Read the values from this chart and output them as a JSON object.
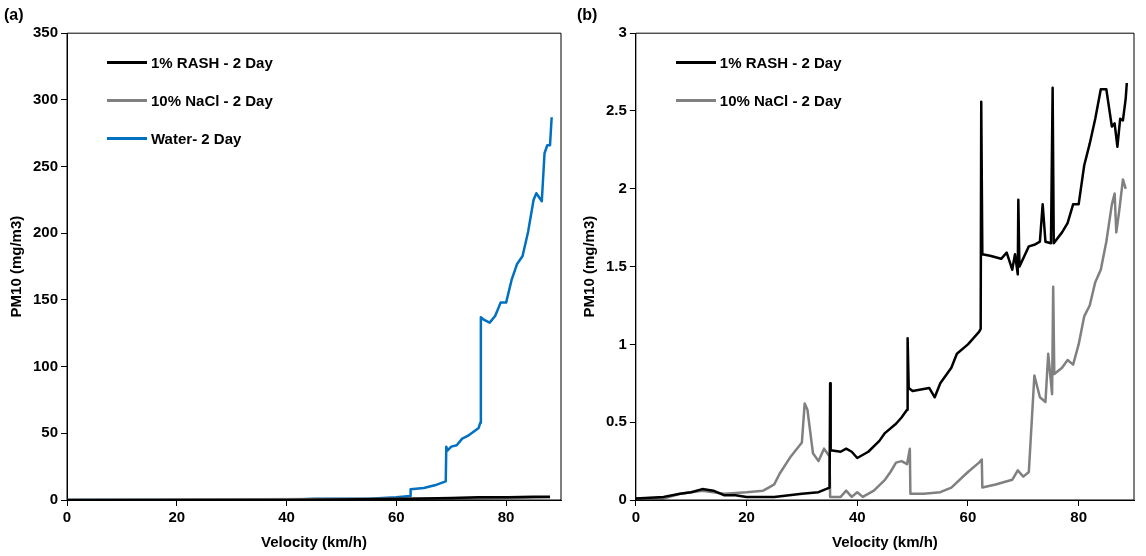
{
  "chart_data": [
    {
      "type": "line",
      "title": "(a)",
      "xlabel": "Velocity (km/h)",
      "ylabel": "PM10 (mg/m3)",
      "xlim": [
        0,
        90
      ],
      "xticks": [
        0,
        20,
        40,
        60,
        80
      ],
      "ylim": [
        0,
        350
      ],
      "yticks": [
        0,
        50,
        100,
        150,
        200,
        250,
        300,
        350
      ],
      "grid": false,
      "legend": "top left",
      "marker": "none",
      "series": [
        {
          "name": "1% RASH - 2 Day",
          "color": "#000000",
          "x": [
            0,
            40,
            62.5,
            70,
            75,
            80,
            85,
            88
          ],
          "values": [
            0,
            0,
            1,
            1.5,
            2,
            2,
            2.5,
            2.5
          ]
        },
        {
          "name": "10% NaCl - 2 Day",
          "color": "#808080",
          "x": [
            0,
            60,
            70,
            80,
            88
          ],
          "values": [
            0,
            1,
            1,
            1.5,
            2
          ]
        },
        {
          "name": "Water- 2 Day",
          "color": "#0070c0",
          "x": [
            0,
            40,
            45,
            50,
            55,
            60,
            62.5,
            62.6,
            65,
            67,
            69,
            69.1,
            69.3,
            70,
            71,
            72,
            73,
            74,
            75,
            75.3,
            75.4,
            76,
            77,
            78,
            79,
            80,
            81,
            82,
            83,
            84,
            85,
            85.5,
            86,
            86.5,
            87,
            87.5,
            88,
            88.3
          ],
          "values": [
            0,
            0,
            1,
            1,
            1,
            2,
            3,
            8,
            9,
            11,
            14,
            40,
            37,
            40,
            41,
            46,
            48,
            51,
            54,
            58,
            137,
            135,
            133,
            138,
            148,
            148,
            165,
            177,
            183,
            201,
            225,
            230,
            227,
            224,
            260,
            266,
            266,
            287
          ]
        }
      ]
    },
    {
      "type": "line",
      "title": "(b)",
      "xlabel": "Velocity (km/h)",
      "ylabel": "PM10 (mg/m3)",
      "xlim": [
        0,
        90
      ],
      "xticks": [
        0,
        20,
        40,
        60,
        80
      ],
      "ylim": [
        0,
        3
      ],
      "yticks": [
        0,
        0.5,
        1,
        1.5,
        2,
        2.5,
        3
      ],
      "grid": false,
      "legend": "top left",
      "marker": "none",
      "series": [
        {
          "name": "1% RASH - 2 Day",
          "color": "#000000",
          "x": [
            0,
            5,
            8,
            10,
            12,
            14,
            16,
            18,
            20,
            25,
            30,
            33,
            35,
            35.1,
            35.2,
            37,
            38,
            39,
            40,
            42,
            44,
            45,
            47,
            48,
            49,
            49.1,
            49.3,
            50,
            53,
            54,
            55,
            57,
            58,
            60,
            62,
            62.3,
            62.4,
            62.6,
            64,
            66,
            67,
            68,
            68.5,
            69,
            69.1,
            69.3,
            71,
            72,
            73,
            73.5,
            74,
            75,
            75.3,
            75.5,
            77,
            78,
            79,
            80,
            81,
            82,
            83,
            84,
            85,
            86,
            86.5,
            87,
            87.5,
            88,
            88.5,
            88.7
          ],
          "values": [
            0.01,
            0.02,
            0.04,
            0.05,
            0.07,
            0.06,
            0.03,
            0.03,
            0.02,
            0.02,
            0.04,
            0.05,
            0.08,
            0.75,
            0.32,
            0.31,
            0.33,
            0.31,
            0.27,
            0.31,
            0.38,
            0.43,
            0.49,
            0.53,
            0.58,
            1.04,
            0.72,
            0.7,
            0.72,
            0.66,
            0.75,
            0.85,
            0.94,
            1.0,
            1.08,
            1.1,
            2.56,
            1.58,
            1.57,
            1.55,
            1.59,
            1.48,
            1.58,
            1.45,
            1.93,
            1.5,
            1.63,
            1.64,
            1.66,
            1.9,
            1.66,
            1.65,
            2.65,
            1.65,
            1.72,
            1.78,
            1.9,
            1.9,
            2.15,
            2.29,
            2.45,
            2.64,
            2.64,
            2.4,
            2.42,
            2.27,
            2.45,
            2.44,
            2.58,
            2.68
          ]
        },
        {
          "name": "10% NaCl - 2 Day",
          "color": "#808080",
          "x": [
            0,
            5,
            8,
            10,
            12,
            14,
            16,
            20,
            23,
            24,
            25,
            26,
            28,
            30,
            30.5,
            31,
            32,
            33,
            34,
            35,
            35.1,
            37,
            38,
            39,
            40,
            41,
            43,
            45,
            46,
            47,
            48,
            49,
            49.5,
            49.6,
            52,
            55,
            57,
            60,
            62,
            62.5,
            62.6,
            65,
            68,
            69,
            70,
            71,
            72,
            73,
            74,
            74.5,
            75.2,
            75.4,
            75.6,
            77,
            78,
            79,
            80,
            81,
            82,
            83,
            84,
            85,
            86,
            86.5,
            86.8,
            87.3,
            88,
            88.5
          ],
          "values": [
            0.01,
            0.01,
            0.04,
            0.05,
            0.06,
            0.05,
            0.04,
            0.05,
            0.06,
            0.08,
            0.1,
            0.17,
            0.28,
            0.37,
            0.62,
            0.58,
            0.3,
            0.25,
            0.33,
            0.28,
            0.02,
            0.02,
            0.06,
            0.02,
            0.05,
            0.02,
            0.06,
            0.13,
            0.18,
            0.24,
            0.25,
            0.23,
            0.33,
            0.04,
            0.04,
            0.05,
            0.08,
            0.18,
            0.24,
            0.26,
            0.08,
            0.1,
            0.13,
            0.19,
            0.15,
            0.18,
            0.8,
            0.66,
            0.63,
            0.94,
            0.68,
            1.37,
            0.81,
            0.85,
            0.9,
            0.87,
            1.0,
            1.18,
            1.25,
            1.4,
            1.48,
            1.66,
            1.9,
            1.97,
            1.72,
            1.85,
            2.06,
            2.0
          ]
        }
      ]
    }
  ]
}
